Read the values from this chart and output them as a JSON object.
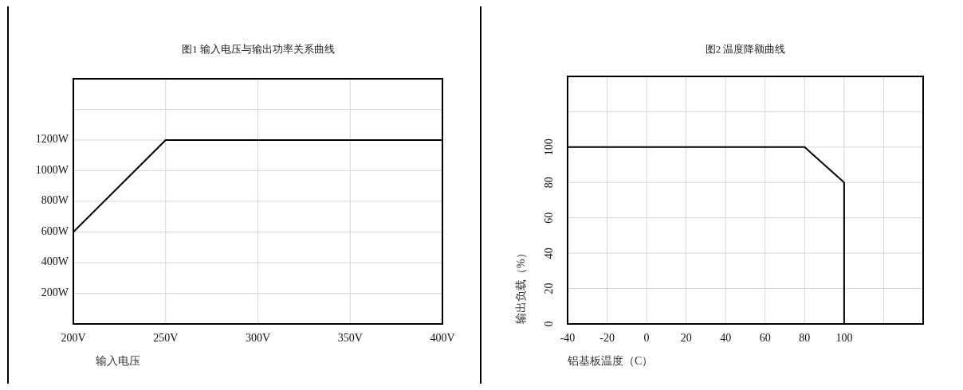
{
  "chart_data": [
    {
      "type": "line",
      "title": "图1 输入电压与输出功率关系曲线",
      "xlabel": "输入电压",
      "x": [
        200,
        250,
        400
      ],
      "series": [
        {
          "color": "#000000",
          "values": [
            600,
            1200,
            1200
          ]
        }
      ],
      "xlim": [
        200,
        400
      ],
      "xticks": [
        {
          "value": 200,
          "label": "200V"
        },
        {
          "value": 250,
          "label": "250V"
        },
        {
          "value": 300,
          "label": "300V"
        },
        {
          "value": 350,
          "label": "350V"
        },
        {
          "value": 400,
          "label": "400V"
        }
      ],
      "ylim": [
        0,
        1600
      ],
      "yticks": [
        {
          "value": 0,
          "label": null
        },
        {
          "value": 200,
          "label": "200W"
        },
        {
          "value": 400,
          "label": "400W"
        },
        {
          "value": 600,
          "label": "600W"
        },
        {
          "value": 800,
          "label": "800W"
        },
        {
          "value": 1000,
          "label": "1000W"
        },
        {
          "value": 1200,
          "label": "1200W"
        },
        {
          "value": 1400,
          "label": null
        }
      ],
      "grid": true,
      "marker": "none",
      "line_style": "solid"
    },
    {
      "type": "line",
      "title": "图2 温度降额曲线",
      "xlabel": "铝基板温度（C）",
      "ylabel": "输出负载（%）",
      "x": [
        -40,
        80,
        100,
        100
      ],
      "series": [
        {
          "color": "#000000",
          "values": [
            100,
            100,
            80,
            0
          ]
        }
      ],
      "xlim": [
        -40,
        140
      ],
      "xticks": [
        -40,
        -20,
        0,
        20,
        40,
        60,
        80,
        100,
        {
          "value": 120,
          "label": null
        }
      ],
      "ylim": [
        0,
        140
      ],
      "yticks": [
        0,
        20,
        40,
        60,
        80,
        100,
        {
          "value": 120,
          "label": null
        }
      ],
      "grid": true,
      "marker": "none",
      "line_style": "solid"
    }
  ]
}
